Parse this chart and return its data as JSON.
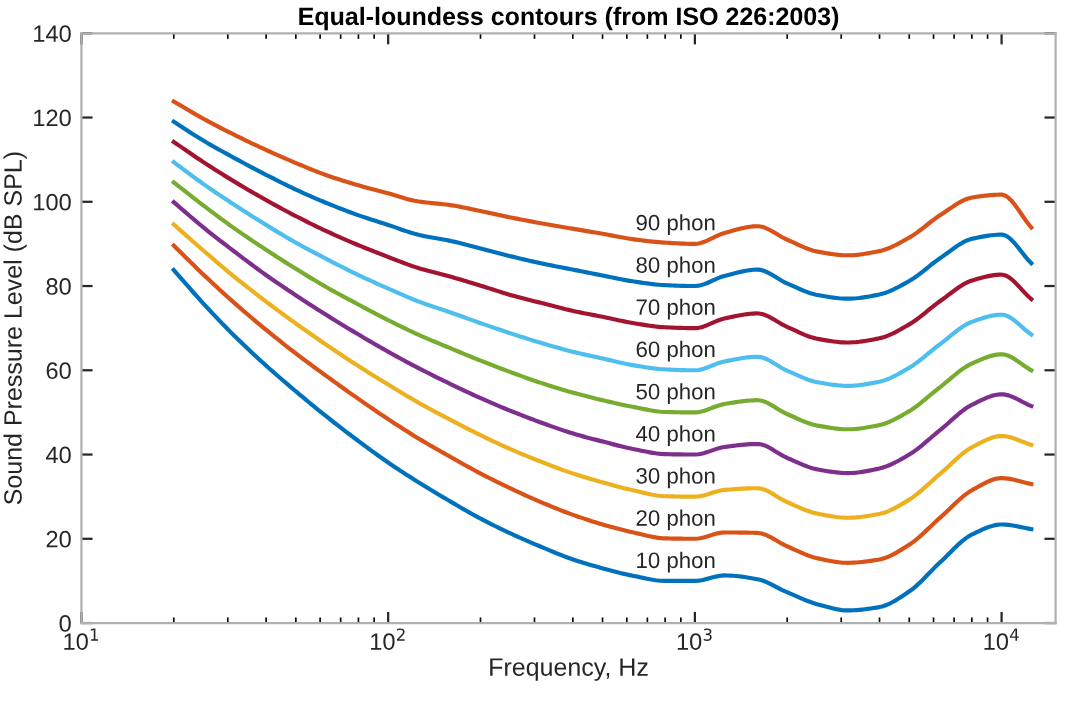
{
  "chart_data": {
    "type": "line",
    "title": "Equal-loundess contours (from ISO 226:2003)",
    "xlabel": "Frequency, Hz",
    "ylabel": "Sound Pressure Level (dB SPL)",
    "x": [
      20,
      25,
      31.5,
      40,
      50,
      63,
      80,
      100,
      125,
      160,
      200,
      250,
      315,
      400,
      500,
      630,
      800,
      1000,
      1250,
      1600,
      2000,
      2500,
      3150,
      4000,
      5000,
      6300,
      8000,
      10000,
      12500
    ],
    "series": [
      {
        "name": "10 phon",
        "color": "#0072bd",
        "values": [
          83.8,
          75.8,
          68.2,
          61.1,
          55.0,
          49.0,
          43.2,
          38.1,
          33.5,
          28.8,
          24.8,
          21.3,
          18.1,
          15.1,
          13.0,
          11.2,
          10.0,
          10,
          11.3,
          10.4,
          7.3,
          4.5,
          3.0,
          3.8,
          7.5,
          14.4,
          21.0,
          23.4,
          22.3
        ]
      },
      {
        "name": "20 phon",
        "color": "#d95319",
        "values": [
          89.6,
          82.7,
          76.0,
          69.6,
          64.0,
          58.6,
          53.2,
          48.4,
          43.9,
          39.4,
          35.5,
          32.0,
          28.7,
          25.7,
          23.4,
          21.5,
          20.1,
          20,
          21.5,
          21.4,
          18.2,
          15.4,
          14.3,
          15.1,
          18.6,
          25.0,
          31.5,
          34.4,
          33.0
        ]
      },
      {
        "name": "30 phon",
        "color": "#edb120",
        "values": [
          94.6,
          88.4,
          82.2,
          76.3,
          71.1,
          66.0,
          61.0,
          56.6,
          52.4,
          48.2,
          44.6,
          41.3,
          38.3,
          35.5,
          33.4,
          31.5,
          30.1,
          30,
          31.6,
          32.0,
          28.7,
          26.0,
          25.0,
          25.9,
          29.3,
          35.4,
          41.7,
          44.4,
          42.3
        ]
      },
      {
        "name": "40 phon",
        "color": "#7e2f8e",
        "values": [
          99.9,
          93.9,
          88.2,
          82.6,
          77.8,
          73.1,
          68.5,
          64.4,
          60.6,
          56.7,
          53.4,
          50.4,
          47.6,
          45.0,
          43.1,
          41.3,
          40.1,
          40,
          41.8,
          42.5,
          39.2,
          36.5,
          35.6,
          36.7,
          40.0,
          45.8,
          51.8,
          54.3,
          51.5
        ]
      },
      {
        "name": "50 phon",
        "color": "#77ac30",
        "values": [
          104.6,
          99.1,
          93.7,
          88.6,
          84.1,
          79.7,
          75.6,
          71.9,
          68.5,
          65.2,
          62.3,
          59.6,
          57.0,
          54.7,
          52.9,
          51.3,
          50.1,
          50,
          52.0,
          52.9,
          49.6,
          46.9,
          46.0,
          47.0,
          50.3,
          56.0,
          61.6,
          63.8,
          60.0
        ]
      },
      {
        "name": "60 phon",
        "color": "#4dbeee",
        "values": [
          109.4,
          104.2,
          99.3,
          94.5,
          90.3,
          86.4,
          82.6,
          79.4,
          76.4,
          73.7,
          71.2,
          68.8,
          66.5,
          64.4,
          62.8,
          61.2,
          60.2,
          60,
          62.1,
          63.2,
          59.9,
          57.2,
          56.3,
          57.3,
          60.6,
          66.2,
          71.5,
          73.2,
          68.5
        ]
      },
      {
        "name": "70 phon",
        "color": "#a2142f",
        "values": [
          114.2,
          109.4,
          104.8,
          100.4,
          96.6,
          93.0,
          89.7,
          86.9,
          84.3,
          82.2,
          80.1,
          77.9,
          76.0,
          74.1,
          72.7,
          71.2,
          70.2,
          70,
          72.3,
          73.5,
          70.3,
          67.5,
          66.6,
          67.6,
          70.9,
          76.4,
          81.3,
          82.7,
          76.9
        ]
      },
      {
        "name": "80 phon",
        "color": "#0072bd",
        "values": [
          119.0,
          114.5,
          110.4,
          106.4,
          102.9,
          99.7,
          96.8,
          94.5,
          92.2,
          90.7,
          88.9,
          87.1,
          85.4,
          83.9,
          82.5,
          81.1,
          80.2,
          80,
          82.4,
          83.9,
          80.6,
          77.9,
          77.0,
          78.0,
          81.2,
          86.6,
          91.2,
          92.2,
          85.4
        ]
      },
      {
        "name": "90 phon",
        "color": "#d95319",
        "values": [
          123.8,
          119.7,
          115.9,
          112.3,
          109.2,
          106.3,
          103.9,
          102.0,
          100.1,
          99.2,
          97.8,
          96.3,
          94.9,
          93.6,
          92.4,
          91.1,
          90.3,
          90,
          92.6,
          94.2,
          91.0,
          88.2,
          87.3,
          88.3,
          91.5,
          96.8,
          101.0,
          101.7,
          93.9
        ]
      }
    ],
    "log": "x",
    "xlim": [
      10,
      15000
    ],
    "xticks": [
      {
        "value": 10,
        "label": "10$^{1}$"
      },
      {
        "value": 100,
        "label": "10$^{2}$"
      },
      {
        "value": 1000,
        "label": "10$^{3}$"
      },
      {
        "value": 10000,
        "label": "10$^{4}$"
      }
    ],
    "ylim": [
      0,
      140
    ],
    "yticks": [
      0,
      20,
      40,
      60,
      80,
      100,
      120,
      140
    ],
    "grid": false
  }
}
